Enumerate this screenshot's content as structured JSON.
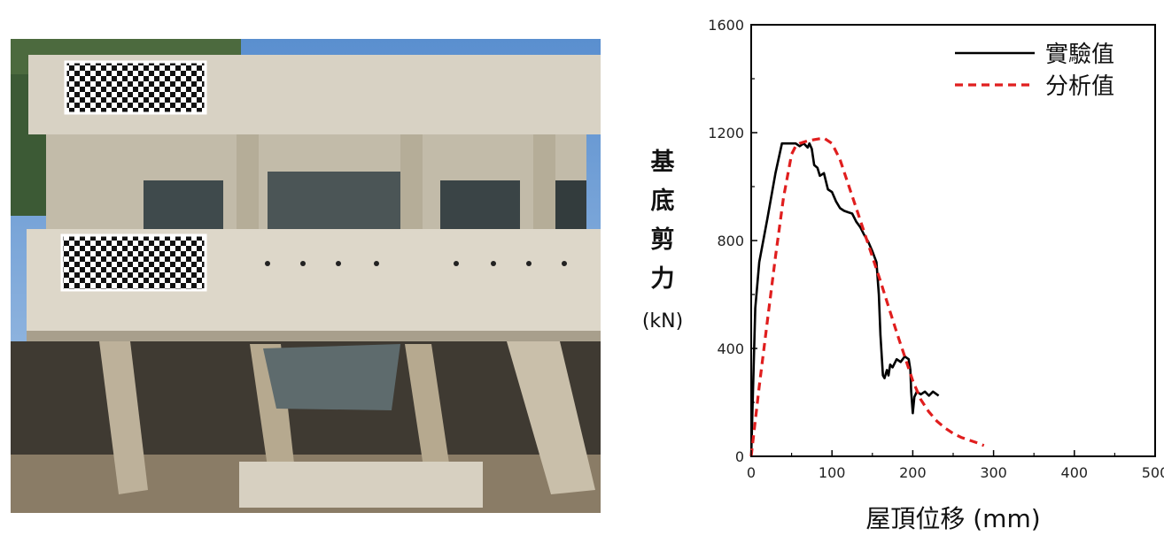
{
  "photo": {
    "alt": ""
  },
  "chart_data": {
    "type": "line",
    "title": "",
    "xlabel": "屋頂位移 (mm)",
    "ylabel_chars": [
      "基",
      "底",
      "剪",
      "力"
    ],
    "ylabel_unit": "(kN)",
    "xlim": [
      0,
      500
    ],
    "ylim": [
      0,
      1600
    ],
    "x_ticks": [
      0,
      100,
      200,
      300,
      400,
      500
    ],
    "x_tick_labels": [
      "0",
      "100",
      "200",
      "300",
      "400",
      "500"
    ],
    "y_ticks": [
      0,
      400,
      800,
      1200,
      1600
    ],
    "y_tick_labels": [
      "0",
      "400",
      "800",
      "1200",
      "1600"
    ],
    "grid": false,
    "legend_position": "top-right",
    "series": [
      {
        "name": "實驗值",
        "color": "#000000",
        "dash": "solid",
        "x": [
          0,
          5,
          10,
          20,
          30,
          38,
          45,
          55,
          60,
          65,
          70,
          72,
          75,
          78,
          82,
          85,
          90,
          95,
          100,
          105,
          110,
          115,
          120,
          125,
          130,
          135,
          140,
          145,
          150,
          155,
          158,
          160,
          163,
          165,
          168,
          170,
          172,
          175,
          180,
          185,
          190,
          195,
          197,
          198,
          200,
          202,
          205,
          210,
          215,
          220,
          225,
          232
        ],
        "y": [
          0,
          550,
          720,
          880,
          1050,
          1160,
          1160,
          1160,
          1150,
          1160,
          1145,
          1160,
          1140,
          1080,
          1070,
          1040,
          1050,
          990,
          980,
          945,
          920,
          910,
          905,
          900,
          870,
          850,
          820,
          795,
          760,
          720,
          600,
          450,
          300,
          290,
          320,
          300,
          340,
          330,
          360,
          350,
          370,
          360,
          320,
          240,
          160,
          220,
          240,
          230,
          240,
          225,
          240,
          225
        ]
      },
      {
        "name": "分析值",
        "color": "#e01e1e",
        "dash": "dashed",
        "x": [
          0,
          10,
          20,
          30,
          40,
          50,
          55,
          60,
          70,
          80,
          90,
          100,
          110,
          120,
          130,
          140,
          150,
          160,
          170,
          180,
          190,
          200,
          210,
          220,
          230,
          240,
          250,
          260,
          270,
          280,
          288
        ],
        "y": [
          0,
          260,
          500,
          740,
          960,
          1120,
          1150,
          1160,
          1170,
          1175,
          1180,
          1160,
          1100,
          1010,
          920,
          830,
          740,
          650,
          555,
          460,
          370,
          280,
          210,
          165,
          130,
          105,
          85,
          70,
          60,
          50,
          40
        ]
      }
    ]
  }
}
